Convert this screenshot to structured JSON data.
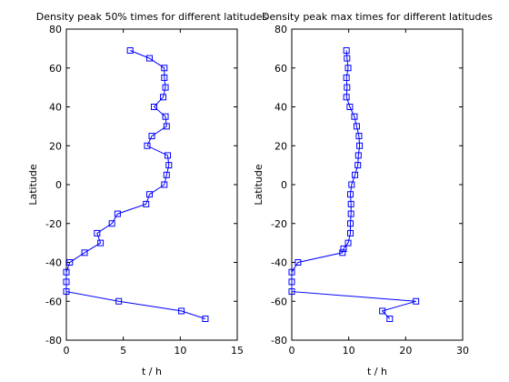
{
  "chart_data": [
    {
      "type": "line",
      "title": "Density peak 50% times for different latitudes",
      "xlabel": "t / h",
      "ylabel": "Latitude",
      "xlim": [
        0,
        15
      ],
      "ylim": [
        -80,
        80
      ],
      "xticks": [
        0,
        5,
        10,
        15
      ],
      "yticks": [
        -80,
        -60,
        -40,
        -20,
        0,
        20,
        40,
        60,
        80
      ],
      "grid": false,
      "marker": "square",
      "color": "#0000ff",
      "series": [
        {
          "points": [
            [
              5.6,
              69
            ],
            [
              7.3,
              65
            ],
            [
              8.6,
              60
            ],
            [
              8.6,
              55
            ],
            [
              8.7,
              50
            ],
            [
              8.5,
              45
            ],
            [
              7.7,
              40
            ],
            [
              8.7,
              35
            ],
            [
              8.8,
              30
            ],
            [
              7.5,
              25
            ],
            [
              7.1,
              20
            ],
            [
              8.9,
              15
            ],
            [
              9.0,
              10
            ],
            [
              8.8,
              5
            ],
            [
              8.6,
              0
            ],
            [
              7.3,
              -5
            ],
            [
              7.0,
              -10
            ],
            [
              4.5,
              -15
            ],
            [
              4.0,
              -20
            ],
            [
              2.7,
              -25
            ],
            [
              3.0,
              -30
            ],
            [
              1.6,
              -35
            ],
            [
              0.3,
              -40
            ],
            [
              0.0,
              -45
            ],
            [
              0.0,
              -50
            ],
            [
              0.0,
              -55
            ],
            [
              4.6,
              -60
            ],
            [
              10.1,
              -65
            ],
            [
              12.2,
              -69
            ]
          ]
        }
      ]
    },
    {
      "type": "line",
      "title": "Density peak max times for different latitudes",
      "xlabel": "t / h",
      "ylabel": "Latitude",
      "xlim": [
        0,
        30
      ],
      "ylim": [
        -80,
        80
      ],
      "xticks": [
        0,
        10,
        20,
        30
      ],
      "yticks": [
        -80,
        -60,
        -40,
        -20,
        0,
        20,
        40,
        60,
        80
      ],
      "grid": false,
      "marker": "square",
      "color": "#0000ff",
      "series": [
        {
          "points": [
            [
              9.6,
              69
            ],
            [
              9.7,
              65
            ],
            [
              9.9,
              60
            ],
            [
              9.6,
              55
            ],
            [
              9.7,
              50
            ],
            [
              9.6,
              45
            ],
            [
              10.2,
              40
            ],
            [
              11.0,
              35
            ],
            [
              11.4,
              30
            ],
            [
              11.8,
              25
            ],
            [
              11.9,
              20
            ],
            [
              11.7,
              15
            ],
            [
              11.6,
              10
            ],
            [
              11.1,
              5
            ],
            [
              10.5,
              0
            ],
            [
              10.3,
              -5
            ],
            [
              10.4,
              -10
            ],
            [
              10.4,
              -15
            ],
            [
              10.3,
              -20
            ],
            [
              10.3,
              -25
            ],
            [
              9.9,
              -30
            ],
            [
              9.1,
              -33
            ],
            [
              8.9,
              -35
            ],
            [
              1.1,
              -40
            ],
            [
              0.0,
              -45
            ],
            [
              0.0,
              -50
            ],
            [
              0.0,
              -55
            ],
            [
              21.8,
              -60
            ],
            [
              15.9,
              -65
            ],
            [
              17.2,
              -69
            ]
          ]
        }
      ]
    }
  ]
}
